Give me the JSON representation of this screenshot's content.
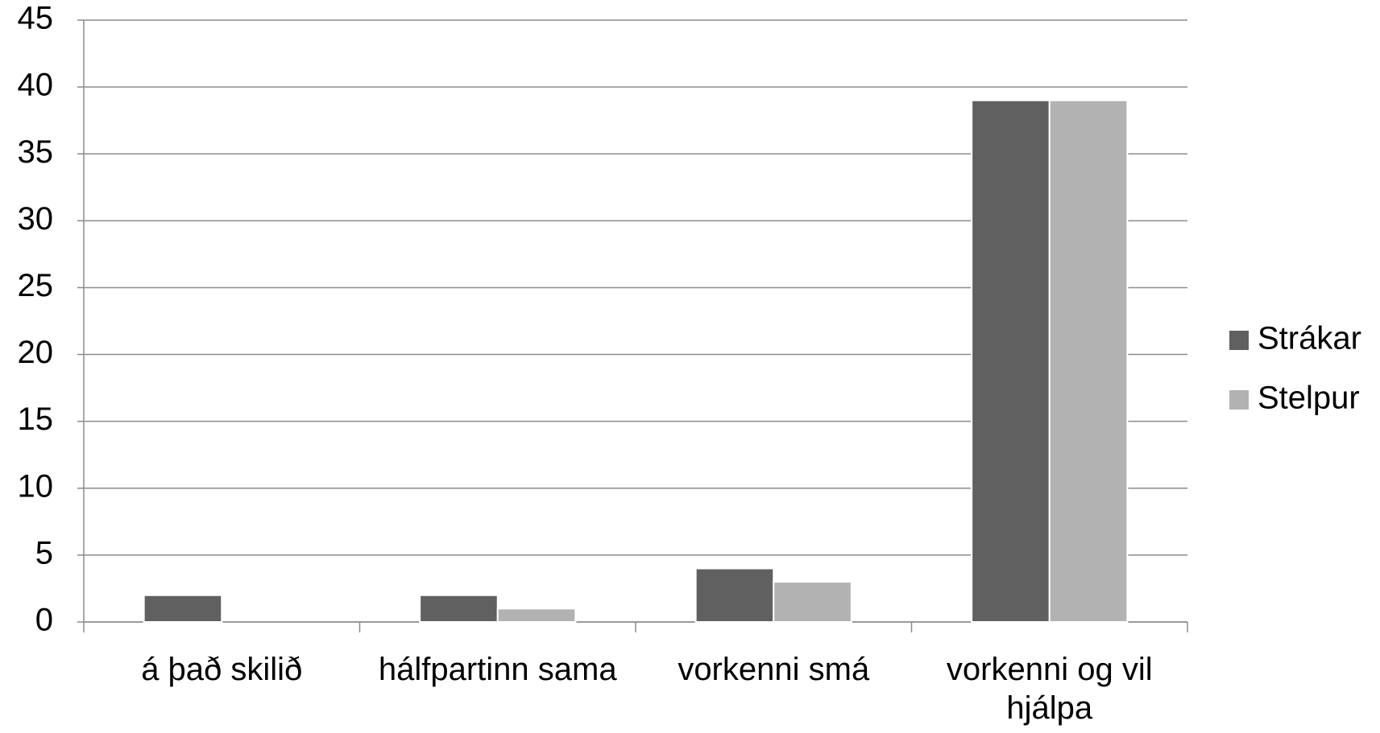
{
  "chart_data": {
    "type": "bar",
    "categories": [
      "á það skilið",
      "hálfpartinn sama",
      "vorkenni smá",
      "vorkenni og vil hjálpa"
    ],
    "series": [
      {
        "name": "Strákar",
        "color": "#606060",
        "values": [
          2,
          2,
          4,
          39
        ]
      },
      {
        "name": "Stelpur",
        "color": "#b2b2b2",
        "values": [
          0,
          1,
          3,
          39
        ]
      }
    ],
    "ylim": [
      0,
      45
    ],
    "yticks": [
      0,
      5,
      10,
      15,
      20,
      25,
      30,
      35,
      40,
      45
    ],
    "grid": true,
    "legend": "right"
  }
}
